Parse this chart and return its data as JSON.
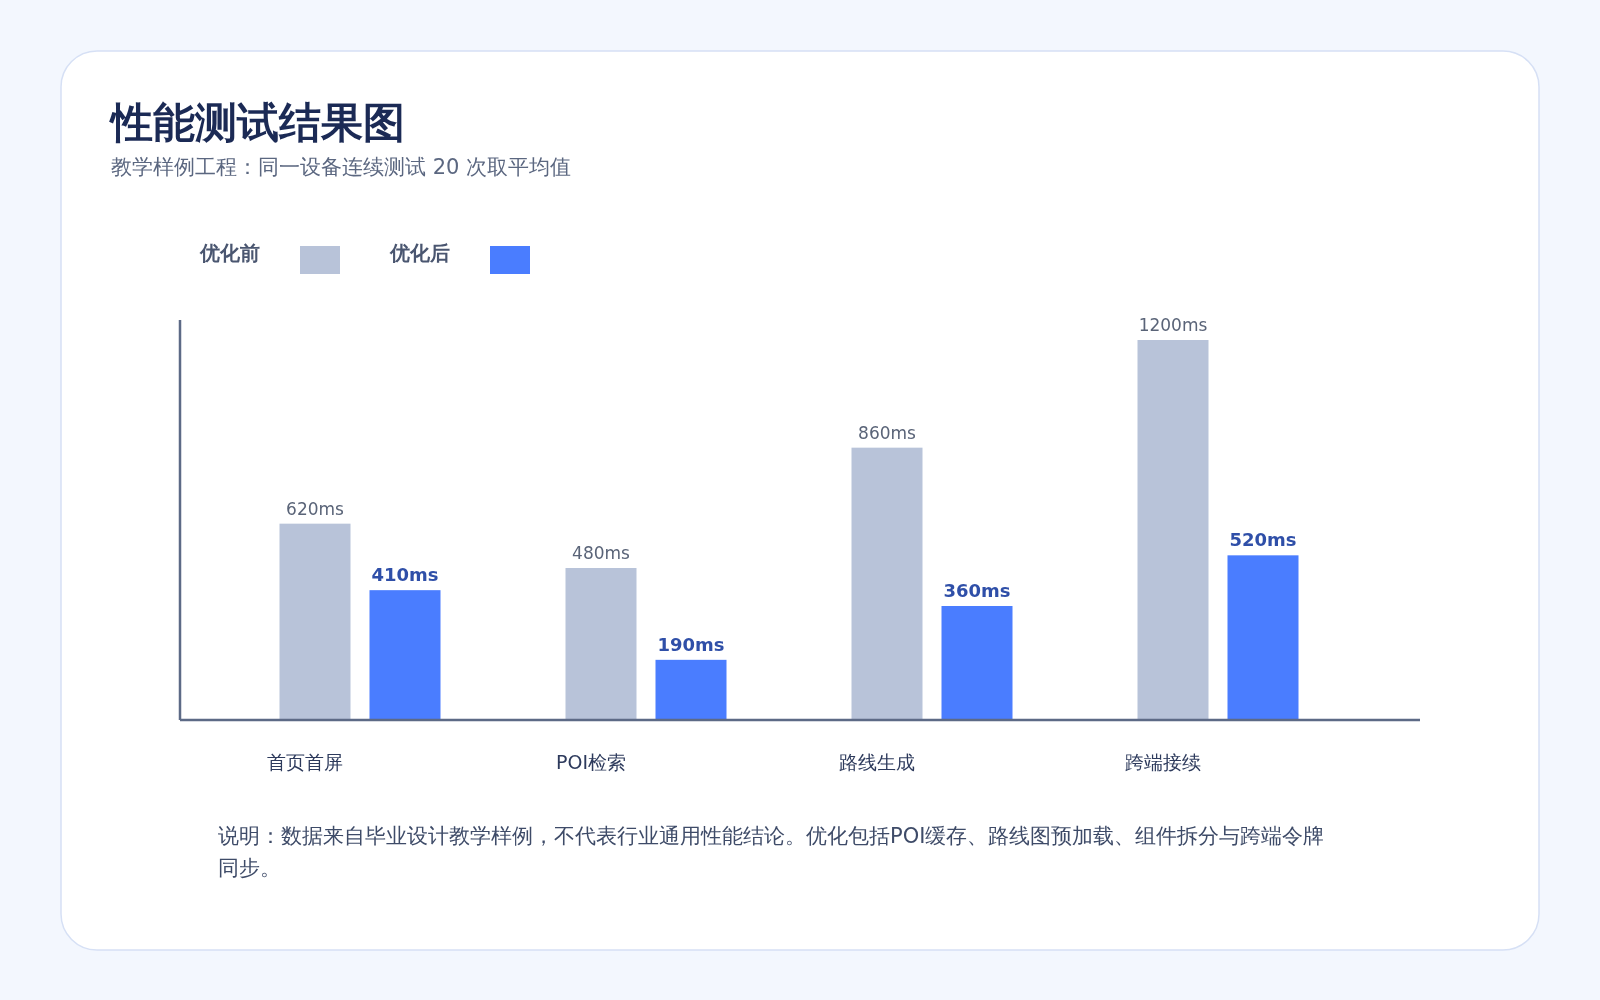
{
  "chart_data": {
    "type": "bar",
    "title": "性能测试结果图",
    "subtitle": "教学样例工程：同一设备连续测试 20 次取平均值",
    "categories": [
      "首页首屏",
      "POI检索",
      "路线生成",
      "跨端接续"
    ],
    "series": [
      {
        "name": "优化前",
        "color": "#b8c3d9",
        "values": [
          620,
          480,
          860,
          1200
        ],
        "value_labels": [
          "620ms",
          "480ms",
          "860ms",
          "1200ms"
        ]
      },
      {
        "name": "优化后",
        "color": "#4a7dff",
        "values": [
          410,
          190,
          360,
          520
        ],
        "value_labels": [
          "410ms",
          "190ms",
          "360ms",
          "520ms"
        ]
      }
    ],
    "legend": "top left",
    "grid": false,
    "annotations": [
      "说明：数据来自毕业设计教学样例，不代表行业通用性能结论。优化包括POI缓存、路线图预加载、组件拆分与跨端令牌同步。"
    ]
  }
}
